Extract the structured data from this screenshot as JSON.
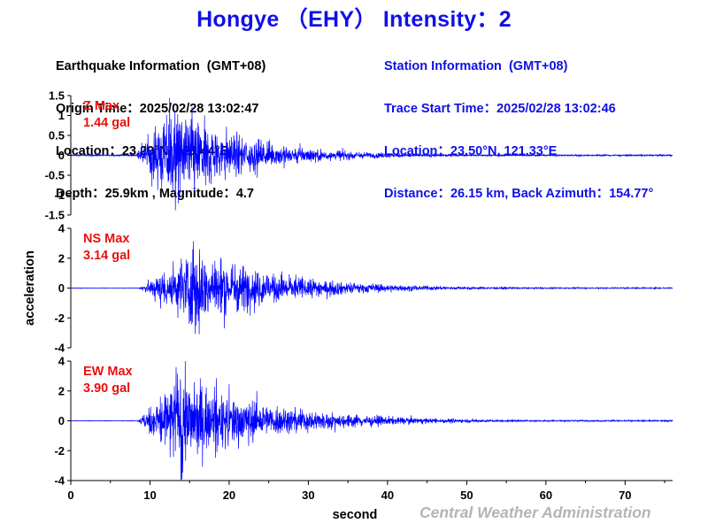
{
  "title": "Hongye （EHY） Intensity：2",
  "earthquake_info": {
    "header": "Earthquake Information  (GMT+08)",
    "origin_time": "Origin Time：2025/02/28 13:02:47",
    "location": "Location：23.29°N, 121.44°E",
    "depth_magnitude": "Depth：25.9km , Magnitude：4.7"
  },
  "station_info": {
    "header": "Station Information  (GMT+08)",
    "trace_start": "Trace Start Time：2025/02/28 13:02:46",
    "location": "Location：23.50°N, 121.33°E",
    "distance": "Distance：26.15 km, Back Azimuth：154.77°"
  },
  "credit": "Central Weather Administration",
  "colors": {
    "title": "#1010e8",
    "trace": "#0000ff",
    "max_label": "#e81010",
    "credit": "#b4b4b4"
  },
  "chart_data": [
    {
      "type": "line",
      "component": "Z",
      "max_label": "Z Max",
      "max_value": "1.44 gal",
      "xlabel": "",
      "ylabel": "",
      "xlim": [
        0,
        76
      ],
      "ylim": [
        -1.5,
        1.5
      ],
      "yticks": [
        "-1.5",
        "-1",
        "-0.5",
        "0",
        "0.5",
        "1",
        "1.5"
      ],
      "xticks": [],
      "envelope": {
        "onset_s": 8.2,
        "peak_s": 12.5,
        "peak_amplitude": 1.44,
        "min_amplitude": -1.38,
        "decay_s": 9,
        "end_s": 76
      }
    },
    {
      "type": "line",
      "component": "NS",
      "max_label": "NS Max",
      "max_value": "3.14 gal",
      "xlabel": "",
      "ylabel": "acceleration",
      "xlim": [
        0,
        76
      ],
      "ylim": [
        -4,
        4
      ],
      "yticks": [
        "-4",
        "-2",
        "0",
        "2",
        "4"
      ],
      "xticks": [],
      "envelope": {
        "onset_s": 8.6,
        "peak_s": 15.5,
        "peak_amplitude": 3.14,
        "min_amplitude": -3.1,
        "decay_s": 10,
        "end_s": 76
      }
    },
    {
      "type": "line",
      "component": "EW",
      "max_label": "EW Max",
      "max_value": "3.90 gal",
      "xlabel": "second",
      "ylabel": "",
      "xlim": [
        0,
        76
      ],
      "ylim": [
        -4,
        4
      ],
      "yticks": [
        "-4",
        "-2",
        "0",
        "2",
        "4"
      ],
      "xticks": [
        "0",
        "10",
        "20",
        "30",
        "40",
        "50",
        "60",
        "70"
      ],
      "envelope": {
        "onset_s": 8.4,
        "peak_s": 13.3,
        "peak_amplitude": 3.6,
        "min_amplitude": -3.9,
        "decay_s": 11,
        "end_s": 76
      }
    }
  ]
}
